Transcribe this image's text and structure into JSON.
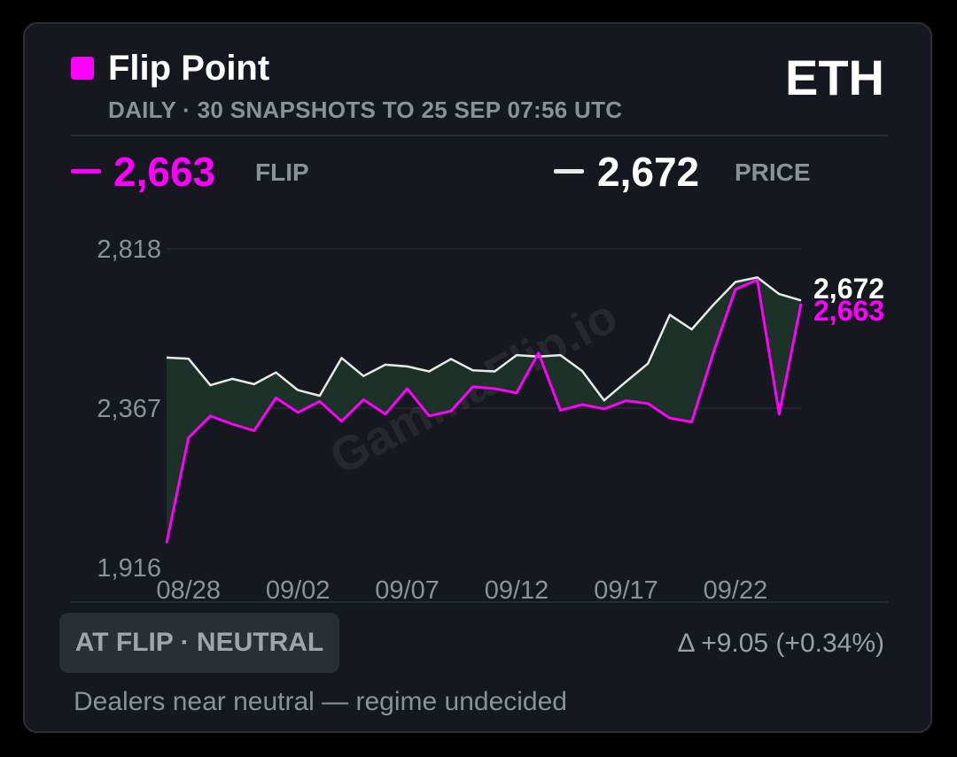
{
  "header": {
    "title": "Flip Point",
    "ticker": "ETH",
    "subtitle": "DAILY · 30 SNAPSHOTS TO 25 SEP 07:56 UTC"
  },
  "kpis": {
    "flip": {
      "value": "2,663",
      "label": "FLIP"
    },
    "price": {
      "value": "2,672",
      "label": "PRICE"
    }
  },
  "footer": {
    "badge": "AT FLIP · NEUTRAL",
    "delta": "Δ +9.05 (+0.34%)",
    "description": "Dealers near neutral — regime undecided"
  },
  "watermark": "GammaFlip.io",
  "colors": {
    "flip": "#ff00ff",
    "price": "#e8ece8",
    "fill": "#1c3428",
    "card": "#15181e",
    "muted": "#8b9099"
  },
  "chart_data": {
    "type": "line",
    "x": [
      "08/27",
      "08/28",
      "08/29",
      "08/30",
      "08/31",
      "09/01",
      "09/02",
      "09/03",
      "09/04",
      "09/05",
      "09/06",
      "09/07",
      "09/08",
      "09/09",
      "09/10",
      "09/11",
      "09/12",
      "09/13",
      "09/14",
      "09/15",
      "09/16",
      "09/17",
      "09/18",
      "09/19",
      "09/20",
      "09/21",
      "09/22",
      "09/23",
      "09/24",
      "09/25"
    ],
    "x_ticks": [
      "08/28",
      "09/02",
      "09/07",
      "09/12",
      "09/17",
      "09/22"
    ],
    "series": [
      {
        "name": "PRICE",
        "values": [
          2510,
          2507,
          2432,
          2450,
          2435,
          2468,
          2418,
          2402,
          2509,
          2458,
          2490,
          2485,
          2471,
          2506,
          2474,
          2471,
          2517,
          2513,
          2517,
          2472,
          2389,
          2442,
          2493,
          2631,
          2590,
          2660,
          2724,
          2737,
          2690,
          2672
        ]
      },
      {
        "name": "FLIP",
        "values": [
          1985,
          2283,
          2345,
          2322,
          2303,
          2396,
          2355,
          2386,
          2330,
          2391,
          2350,
          2422,
          2345,
          2359,
          2428,
          2422,
          2410,
          2523,
          2361,
          2377,
          2365,
          2388,
          2380,
          2339,
          2328,
          2525,
          2703,
          2730,
          2350,
          2663
        ]
      }
    ],
    "y_ticks": [
      "2,818",
      "2,367",
      "1,916"
    ],
    "ylim": [
      1916,
      2818
    ],
    "end_labels": {
      "price": "2,672",
      "flip": "2,663"
    },
    "grid": true,
    "fill_between": true
  }
}
